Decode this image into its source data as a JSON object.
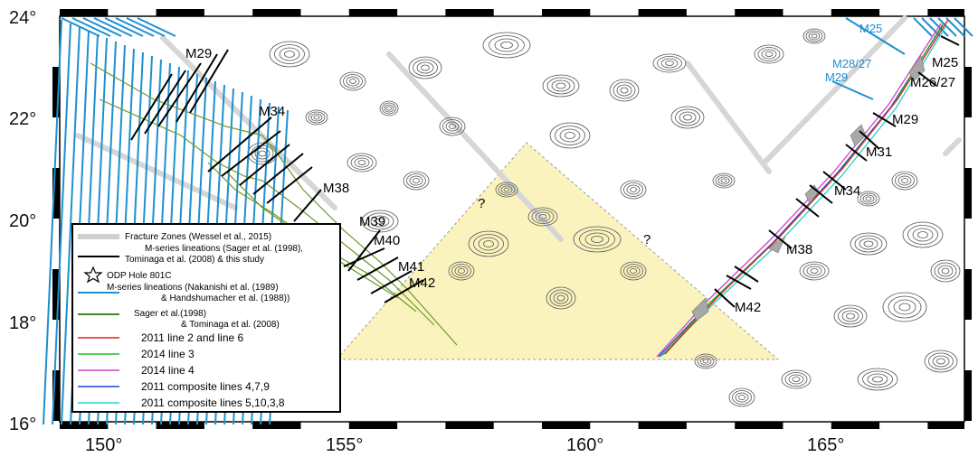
{
  "axes": {
    "x_ticks": [
      "150°",
      "155°",
      "160°",
      "165°"
    ],
    "y_ticks": [
      "24°",
      "22°",
      "20°",
      "18°",
      "16°"
    ]
  },
  "anomaly_labels_west": [
    "M29",
    "M34",
    "M38",
    "M39",
    "M40",
    "M41",
    "M42"
  ],
  "anomaly_labels_east": [
    "M25",
    "M26/27",
    "M29",
    "M31",
    "M34",
    "M38",
    "M42"
  ],
  "anomaly_labels_east_blue": [
    "M25",
    "M28/27",
    "M29"
  ],
  "question_marks": [
    "?",
    "?"
  ],
  "legend": {
    "items": [
      {
        "label": "Fracture Zones (Wessel et al., 2015)",
        "color": "#cfcfcf",
        "style": "line-thick"
      },
      {
        "label": "M-series lineations (Sager et al. (1998), Tominaga et al. (2008) & this study",
        "color": "#000000",
        "style": "line"
      },
      {
        "label": "ODP Hole 801C",
        "color": "#000000",
        "style": "star"
      },
      {
        "label": "M-series lineations (Nakanishi et al. (1989) & Handshumacher et al. (1988))",
        "color": "#1e90d0",
        "style": "line"
      },
      {
        "label": "Sager et al.(1998) & Tominaga et al. (2008)",
        "color": "#3a8a2a",
        "style": "line"
      },
      {
        "label": "2011 line 2 and line 6",
        "color": "#e02020",
        "style": "line"
      },
      {
        "label": "2014 line 3",
        "color": "#20c020",
        "style": "line"
      },
      {
        "label": "2014 line 4",
        "color": "#d040d0",
        "style": "line"
      },
      {
        "label": "2011 composite lines 4,7,9",
        "color": "#2040e0",
        "style": "line"
      },
      {
        "label": "2011 composite lines 5,10,3,8",
        "color": "#20d0d0",
        "style": "line"
      }
    ]
  },
  "colors": {
    "study_area_fill": "#fbf3bd",
    "fracture_zone": "#d4d4d4",
    "contour": "#555555",
    "blue_lineation": "#1e90d0",
    "green_track": "#6a9a2a"
  }
}
